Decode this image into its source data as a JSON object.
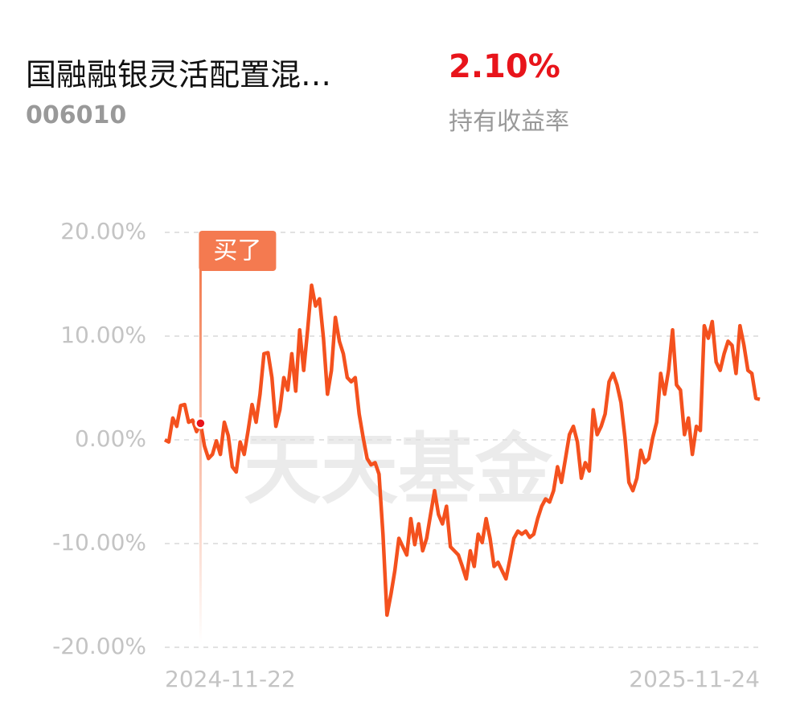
{
  "header": {
    "title": "国融融银灵活配置混…",
    "code": "006010",
    "return_value": "2.10%",
    "return_label": "持有收益率"
  },
  "chart_data": {
    "type": "line",
    "watermark": "天天基金",
    "categories": [
      "2024-11-22",
      null,
      null,
      null,
      null,
      null,
      null,
      null,
      null,
      null,
      null,
      null,
      null,
      null,
      null,
      null,
      null,
      null,
      null,
      null,
      null,
      null,
      null,
      null,
      null,
      null,
      null,
      null,
      null,
      null,
      null,
      null,
      null,
      null,
      null,
      null,
      null,
      null,
      null,
      null,
      null,
      null,
      null,
      null,
      null,
      null,
      null,
      null,
      null,
      null,
      null,
      null,
      null,
      null,
      null,
      null,
      null,
      null,
      null,
      null,
      null,
      null,
      null,
      null,
      null,
      null,
      null,
      null,
      null,
      null,
      null,
      null,
      null,
      null,
      null,
      null,
      null,
      null,
      null,
      null,
      null,
      null,
      null,
      null,
      null,
      null,
      null,
      null,
      null,
      null,
      null,
      null,
      null,
      null,
      null,
      null,
      null,
      null,
      null,
      null,
      null,
      null,
      null,
      null,
      null,
      null,
      null,
      null,
      null,
      null,
      null,
      null,
      null,
      null,
      null,
      null,
      null,
      null,
      null,
      null,
      null,
      null,
      null,
      null,
      null,
      null,
      null,
      null,
      null,
      null,
      null,
      null,
      null,
      null,
      null,
      null,
      null,
      null,
      null,
      null,
      null,
      null,
      null,
      null,
      null,
      null,
      null,
      null,
      null,
      null,
      "2025-11-24"
    ],
    "values": [
      0,
      -0.2,
      2.1,
      1.3,
      3.3,
      3.4,
      1.7,
      1.9,
      0.8,
      1.6,
      -0.6,
      -1.8,
      -1.4,
      -0.1,
      -1.4,
      1.7,
      0.4,
      -2.6,
      -3.1,
      -0.2,
      -1.4,
      0.9,
      3.4,
      1.7,
      4.4,
      8.3,
      8.4,
      6.0,
      1.3,
      2.9,
      6.0,
      4.8,
      8.3,
      4.7,
      10.6,
      6.7,
      10.6,
      14.9,
      12.9,
      13.6,
      9.8,
      4.4,
      6.7,
      11.8,
      9.5,
      8.3,
      6.0,
      5.6,
      6.0,
      2.5,
      0.2,
      -1.8,
      -2.4,
      -2.2,
      -3.3,
      -9.1,
      -16.9,
      -14.9,
      -12.6,
      -9.5,
      -10.3,
      -11.1,
      -7.6,
      -10.1,
      -8.1,
      -10.7,
      -9.5,
      -7.2,
      -4.9,
      -7.2,
      -8.1,
      -6.4,
      -10.3,
      -10.7,
      -11.1,
      -12.2,
      -13.4,
      -10.7,
      -12.2,
      -9.1,
      -9.9,
      -7.6,
      -9.5,
      -12.2,
      -11.8,
      -12.6,
      -13.4,
      -11.5,
      -9.5,
      -8.8,
      -9.1,
      -8.8,
      -9.4,
      -9.1,
      -7.6,
      -6.4,
      -5.7,
      -6.0,
      -4.9,
      -2.6,
      -4.1,
      -1.8,
      0.5,
      1.3,
      -0.2,
      -3.7,
      -2.2,
      -3.0,
      2.9,
      0.5,
      1.3,
      2.5,
      5.6,
      6.4,
      5.3,
      3.6,
      0.2,
      -4.1,
      -4.9,
      -3.7,
      -1.0,
      -2.2,
      -1.8,
      0.2,
      1.7,
      6.4,
      4.4,
      6.7,
      10.6,
      5.3,
      4.8,
      0.5,
      2.1,
      -1.4,
      1.3,
      0.9,
      11.0,
      9.8,
      11.4,
      7.5,
      6.7,
      8.3,
      9.5,
      9.1,
      6.4,
      11.0,
      9.1,
      6.7,
      6.4,
      4.0,
      3.9
    ],
    "color": "#f4511e",
    "ylim": [
      -20,
      20
    ],
    "yticks": [
      {
        "value": 20,
        "label": "20.00%"
      },
      {
        "value": 10,
        "label": "10.00%"
      },
      {
        "value": 0,
        "label": "0.00%"
      },
      {
        "value": -10,
        "label": "-10.00%"
      },
      {
        "value": -20,
        "label": "-20.00%"
      }
    ],
    "grid": true,
    "annotation": {
      "text": "买了",
      "index": 9
    }
  }
}
